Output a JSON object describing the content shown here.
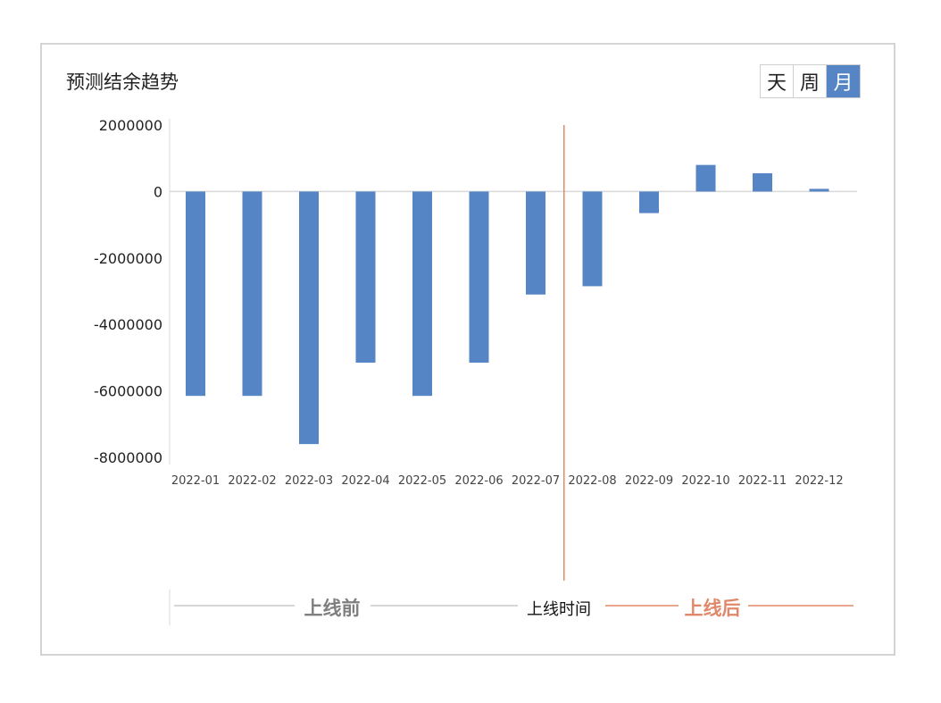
{
  "title": "预测结余趋势",
  "toggle": {
    "options": [
      "天",
      "周",
      "月"
    ],
    "selected": "月"
  },
  "colors": {
    "bar": "#5585c5",
    "divider": "#e0896a",
    "before_text": "#7f7f7f",
    "after_text": "#e0896a"
  },
  "chart_data": {
    "type": "bar",
    "categories": [
      "2022-01",
      "2022-02",
      "2022-03",
      "2022-04",
      "2022-05",
      "2022-06",
      "2022-07",
      "2022-08",
      "2022-09",
      "2022-10",
      "2022-11",
      "2022-12"
    ],
    "values": [
      -6150000,
      -6150000,
      -7600000,
      -5150000,
      -6150000,
      -5150000,
      -3100000,
      -2850000,
      -650000,
      800000,
      550000,
      80000
    ],
    "yticks": [
      "2000000",
      "0",
      "-2000000",
      "-4000000",
      "-6000000",
      "-8000000"
    ],
    "ylim": [
      -8000000,
      2000000
    ],
    "title": "预测结余趋势",
    "xlabel": "",
    "ylabel": "",
    "grid": false,
    "legend": "none",
    "annotation": {
      "divider_between": [
        "2022-07",
        "2022-08"
      ],
      "before_label": "上线前",
      "divider_label": "上线时间",
      "after_label": "上线后"
    }
  }
}
